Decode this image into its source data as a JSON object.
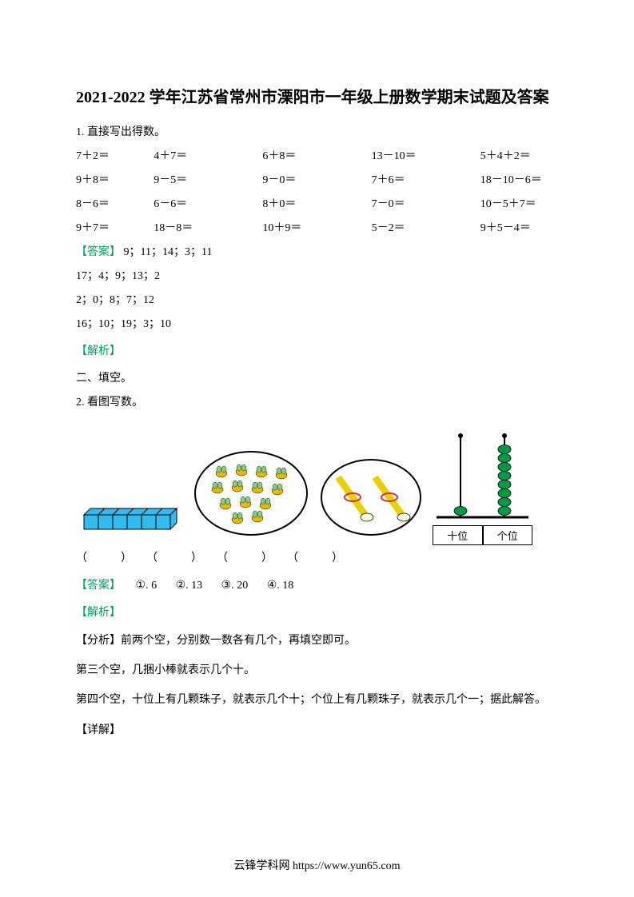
{
  "title": "2021-2022 学年江苏省常州市溧阳市一年级上册数学期末试题及答案",
  "q1": {
    "label": "1. 直接写出得数。",
    "rows": [
      [
        "7＋2＝",
        "4＋7＝",
        "6＋8＝",
        "13－10＝",
        "5＋4＋2＝"
      ],
      [
        "9＋8＝",
        "9－5＝",
        "9－0＝",
        "7＋6＝",
        "18－10－6＝"
      ],
      [
        "8－6＝",
        "6－6＝",
        "8＋0＝",
        "7－0＝",
        "10－5＋7＝"
      ],
      [
        "9＋7＝",
        "18－8＝",
        "10＋9＝",
        "5－2＝",
        "9＋5－4＝"
      ]
    ]
  },
  "answers1": {
    "label": "【答案】",
    "line1": "9；11；14；3；11",
    "line2": "17；4；9；13；2",
    "line3": "2；0；8；7；12",
    "line4": "16；10；19；3；10"
  },
  "analysis_label": "【解析】",
  "section2": "二、填空。",
  "q2": {
    "label": "2. 看图写数。"
  },
  "blanks": {
    "b1": "（　　　）",
    "b2": "（　　　）",
    "b3": "（　　　）",
    "b4": "（　　　）"
  },
  "answers2": {
    "label": "【答案】",
    "items": [
      {
        "num": "①.",
        "val": "6"
      },
      {
        "num": "②.",
        "val": "13"
      },
      {
        "num": "③.",
        "val": "20"
      },
      {
        "num": "④.",
        "val": "18"
      }
    ]
  },
  "analysis2": {
    "label": "【解析】",
    "fenxi_label": "【分析】",
    "fenxi1": "前两个空，分别数一数各有几个，再填空即可。",
    "fenxi2": "第三个空，几捆小棒就表示几个十。",
    "fenxi3": "第四个空，十位上有几颗珠子，就表示几个十；个位上有几颗珠子，就表示几个一；据此解答。",
    "xiangjie_label": "【详解】"
  },
  "figures": {
    "cubes": {
      "count": 6,
      "fill_color": "#33bbee",
      "stroke_color": "#000000"
    },
    "bees": {
      "count": 13,
      "ellipse_stroke": "#000000",
      "bee_colors": {
        "body": "#e6b800",
        "wing": "#88cc88"
      }
    },
    "bundles": {
      "count": 2,
      "ellipse_stroke": "#000000",
      "bundle_color": "#e6d000",
      "tie_color": "#cc3333"
    },
    "abacus": {
      "tens_beads": 1,
      "ones_beads": 8,
      "bead_color": "#009944",
      "rod_color": "#000000",
      "tens_label": "十位",
      "ones_label": "个位"
    }
  },
  "footer": "云锋学科网 https://www.yun65.com",
  "colors": {
    "answer_green": "#009966",
    "background": "#ffffff",
    "text": "#000000"
  }
}
